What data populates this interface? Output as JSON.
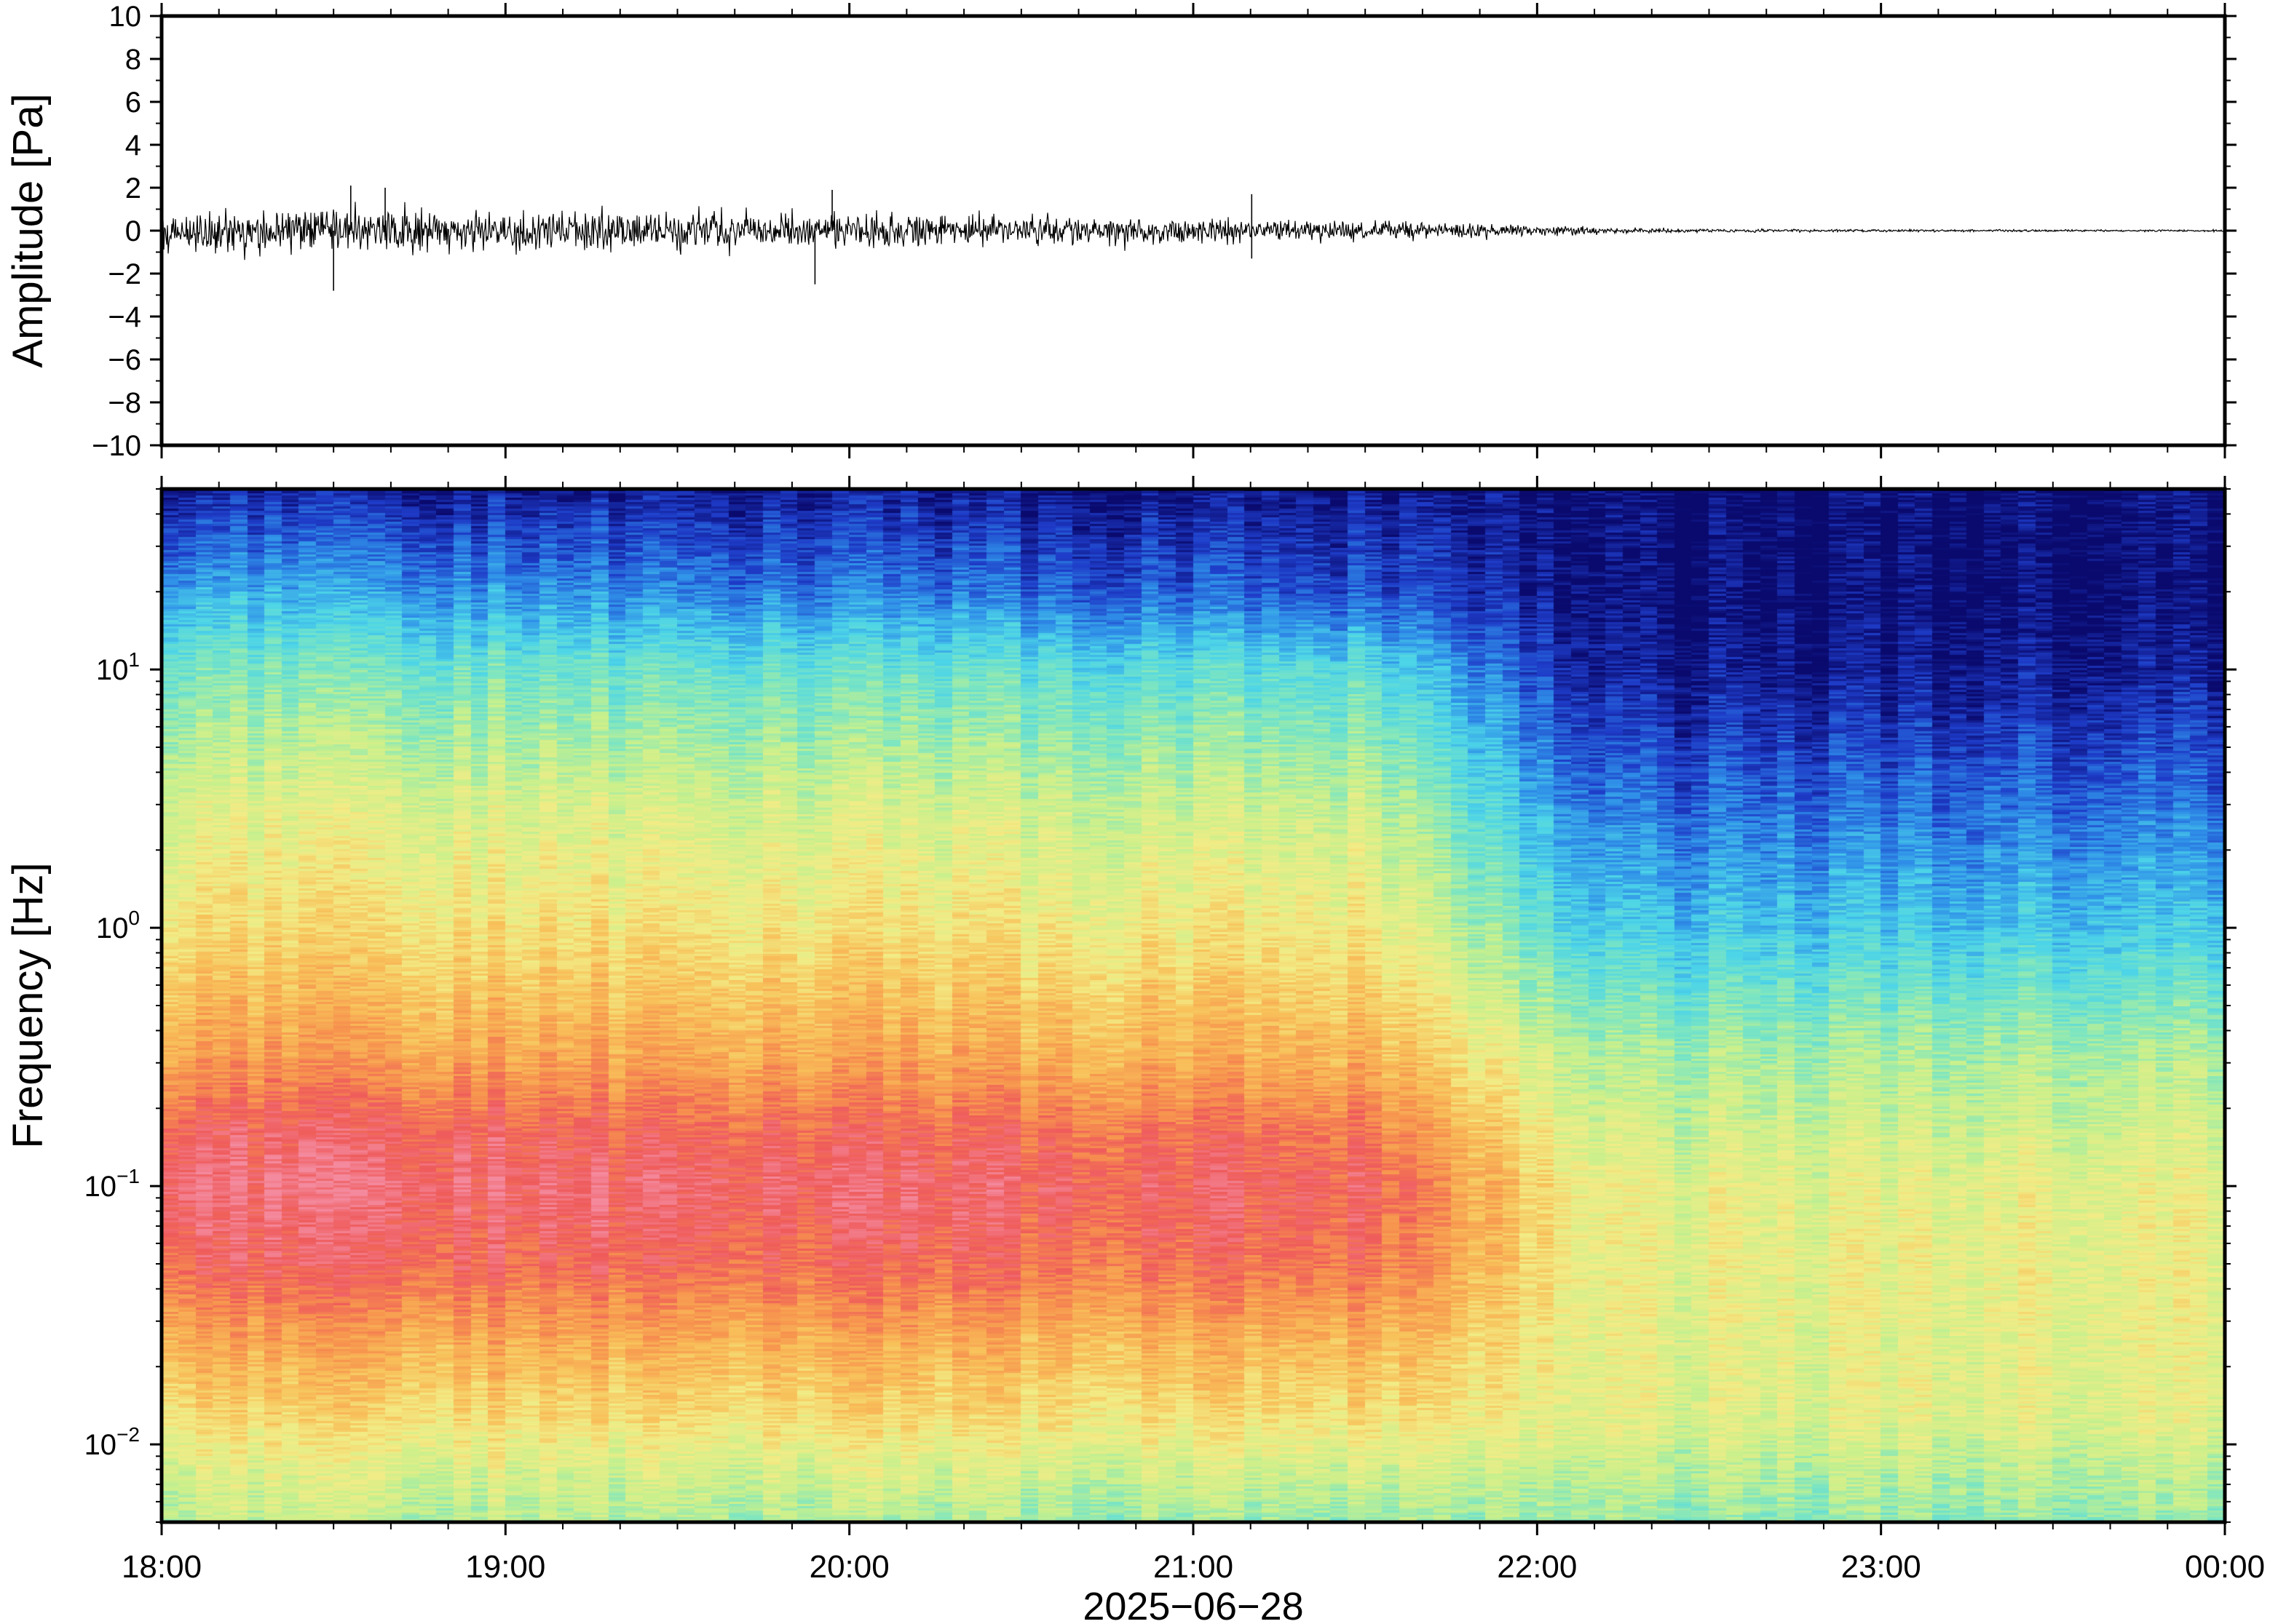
{
  "chart_data": [
    {
      "type": "line",
      "panel": "waveform",
      "ylabel": "Amplitude [Pa]",
      "ylim": [
        -10,
        10
      ],
      "yticks": [
        10,
        8,
        6,
        4,
        2,
        0,
        -2,
        -4,
        -6,
        -8,
        -10
      ],
      "ytick_labels": [
        "10",
        "8",
        "6",
        "4",
        "2",
        "0",
        "−2",
        "−4",
        "−6",
        "−8",
        "−10"
      ],
      "envelope": {
        "time_hours_since_1800": [
          0,
          0.5,
          1.0,
          1.5,
          2.0,
          2.5,
          3.0,
          3.5,
          4.0,
          4.25,
          4.5,
          5.0,
          5.5,
          6.0
        ],
        "amplitude_pa": [
          1.1,
          1.3,
          1.2,
          1.1,
          0.95,
          0.85,
          0.7,
          0.55,
          0.35,
          0.15,
          0.1,
          0.08,
          0.06,
          0.05
        ]
      },
      "spikes": [
        {
          "time_hours_since_1800": 0.5,
          "amplitude_pa": -2.8
        },
        {
          "time_hours_since_1800": 0.55,
          "amplitude_pa": 2.1
        },
        {
          "time_hours_since_1800": 0.65,
          "amplitude_pa": 2.0
        },
        {
          "time_hours_since_1800": 1.9,
          "amplitude_pa": -2.5
        },
        {
          "time_hours_since_1800": 1.95,
          "amplitude_pa": 1.9
        },
        {
          "time_hours_since_1800": 3.17,
          "amplitude_pa": 1.7
        },
        {
          "time_hours_since_1800": 3.17,
          "amplitude_pa": -1.3
        }
      ],
      "grid": false
    },
    {
      "type": "heatmap",
      "panel": "spectrogram",
      "ylabel": "Frequency [Hz]",
      "yscale": "log",
      "ylim_hz": [
        0.005,
        50
      ],
      "ytick_labels": [
        {
          "value_hz": 10,
          "base": "10",
          "exp": "1"
        },
        {
          "value_hz": 1,
          "base": "10",
          "exp": "0"
        },
        {
          "value_hz": 0.1,
          "base": "10",
          "exp": "−1"
        },
        {
          "value_hz": 0.01,
          "base": "10",
          "exp": "−2"
        }
      ],
      "colormap": [
        "#0a0a6e",
        "#1e3cc8",
        "#2f8fe8",
        "#4cd4e8",
        "#7ee6c0",
        "#c8f08c",
        "#f2ec86",
        "#f8c15a",
        "#f7944e",
        "#ef5b5b",
        "#f48a9e"
      ],
      "power_profile": {
        "log10_frequency": [
          1.7,
          1.3,
          1.0,
          0.5,
          0.0,
          -0.5,
          -0.8,
          -1.0,
          -1.3,
          -1.6,
          -1.9,
          -2.1,
          -2.3
        ],
        "level_at_1800": [
          0.05,
          0.25,
          0.4,
          0.55,
          0.64,
          0.78,
          0.92,
          0.96,
          0.9,
          0.76,
          0.64,
          0.55,
          0.5
        ],
        "level_at_2130": [
          0.02,
          0.12,
          0.33,
          0.5,
          0.6,
          0.73,
          0.85,
          0.9,
          0.85,
          0.72,
          0.62,
          0.52,
          0.43
        ],
        "level_at_2300": [
          0.0,
          0.0,
          0.03,
          0.15,
          0.28,
          0.46,
          0.52,
          0.56,
          0.57,
          0.56,
          0.55,
          0.48,
          0.42
        ]
      },
      "grid": false
    }
  ],
  "xaxis": {
    "tick_labels": [
      "18:00",
      "19:00",
      "20:00",
      "21:00",
      "22:00",
      "23:00",
      "00:00"
    ],
    "date_label": "2025−06−28"
  }
}
